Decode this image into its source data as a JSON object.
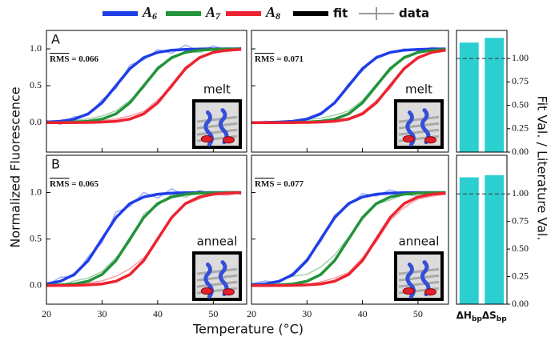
{
  "legend": [
    {
      "label": {
        "main": "A",
        "sub": "6"
      },
      "color": "#1f3ee6"
    },
    {
      "label": {
        "main": "A",
        "sub": "7"
      },
      "color": "#23933a"
    },
    {
      "label": {
        "main": "A",
        "sub": "8"
      },
      "color": "#ec2330"
    },
    {
      "label": "fit",
      "color": "#000000"
    },
    {
      "label": "data",
      "color": "#9a9a9a",
      "marker": "plus"
    }
  ],
  "ylabel": "Normalized Fluorescence",
  "xlabel": "Temperature (°C)",
  "bar_axis_label": "Fit Val. / Literature Val.",
  "chart_data": [
    {
      "type": "line",
      "label": "A",
      "rms": {
        "label": "RMS",
        "sep": " = ",
        "value": 0.066
      },
      "condition": "melt",
      "x": [
        20,
        22.5,
        25,
        27.5,
        30,
        32.5,
        35,
        37.5,
        40,
        42.5,
        45,
        47.5,
        50,
        52.5,
        55
      ],
      "xlim": [
        20,
        56
      ],
      "ylim": [
        -0.4,
        1.25
      ],
      "xticks": [
        20,
        30,
        40,
        50
      ],
      "yticks": [
        {
          "value": 0,
          "label": "0.0"
        },
        {
          "value": 0.5,
          "label": "0.5"
        },
        {
          "value": 1,
          "label": "1.0"
        }
      ],
      "show_xtick_labels": false,
      "show_ytick_labels": true,
      "series": [
        {
          "color": "#1f3ee6",
          "values": [
            0.007,
            0.018,
            0.047,
            0.119,
            0.269,
            0.5,
            0.731,
            0.881,
            0.953,
            0.982,
            0.993,
            0.998,
            0.999,
            1.0,
            1.0
          ],
          "data_values": [
            0.03,
            -0.02,
            0.08,
            0.1,
            0.31,
            0.46,
            0.78,
            0.85,
            0.99,
            0.94,
            1.05,
            0.97,
            1.04,
            0.98,
            1.02
          ]
        },
        {
          "color": "#23933a",
          "values": [
            0.001,
            0.002,
            0.007,
            0.018,
            0.047,
            0.119,
            0.269,
            0.5,
            0.731,
            0.881,
            0.953,
            0.982,
            0.993,
            0.998,
            0.999
          ],
          "data_values": [
            0.02,
            -0.01,
            0.03,
            0.05,
            0.09,
            0.16,
            0.3,
            0.47,
            0.76,
            0.86,
            0.97,
            0.95,
            1.01,
            0.99,
            0.98
          ]
        },
        {
          "color": "#ec2330",
          "values": [
            0.0,
            0.0,
            0.001,
            0.002,
            0.007,
            0.018,
            0.047,
            0.119,
            0.269,
            0.5,
            0.731,
            0.881,
            0.953,
            0.982,
            0.993
          ],
          "data_values": [
            0.01,
            -0.02,
            0.02,
            0.0,
            0.03,
            0.05,
            0.09,
            0.15,
            0.31,
            0.47,
            0.76,
            0.86,
            0.97,
            0.96,
            1.0
          ]
        }
      ]
    },
    {
      "type": "line",
      "rms": {
        "label": "RMS",
        "sep": " = ",
        "value": 0.071
      },
      "condition": "melt",
      "x": [
        20,
        22.5,
        25,
        27.5,
        30,
        32.5,
        35,
        37.5,
        40,
        42.5,
        45,
        47.5,
        50,
        52.5,
        55
      ],
      "xlim": [
        20,
        55.5
      ],
      "ylim": [
        -0.4,
        1.25
      ],
      "xticks": [
        20,
        30,
        40,
        50
      ],
      "yticks": [
        0,
        0.5,
        1
      ],
      "show_xtick_labels": false,
      "show_ytick_labels": false,
      "series": [
        {
          "color": "#1f3ee6",
          "values": [
            0.001,
            0.002,
            0.007,
            0.018,
            0.047,
            0.119,
            0.269,
            0.5,
            0.731,
            0.881,
            0.953,
            0.982,
            0.993,
            0.998,
            0.999
          ],
          "data_values": [
            0.0,
            0.02,
            -0.01,
            0.03,
            0.06,
            0.14,
            0.25,
            0.53,
            0.7,
            0.9,
            0.94,
            1.0,
            0.97,
            1.02,
            1.0
          ]
        },
        {
          "color": "#23933a",
          "values": [
            0.0,
            0.0,
            0.001,
            0.002,
            0.007,
            0.018,
            0.047,
            0.119,
            0.269,
            0.5,
            0.731,
            0.881,
            0.953,
            0.982,
            0.993
          ],
          "data_values": [
            0.01,
            0.0,
            0.02,
            0.01,
            0.04,
            0.06,
            0.1,
            0.16,
            0.3,
            0.52,
            0.7,
            0.9,
            0.94,
            0.99,
            0.98
          ]
        },
        {
          "color": "#ec2330",
          "values": [
            0.0,
            0.0,
            0.0,
            0.001,
            0.002,
            0.007,
            0.018,
            0.047,
            0.119,
            0.269,
            0.5,
            0.731,
            0.881,
            0.953,
            0.982
          ],
          "data_values": [
            0.0,
            0.01,
            -0.01,
            0.02,
            0.0,
            0.02,
            0.04,
            0.06,
            0.14,
            0.3,
            0.46,
            0.75,
            0.86,
            0.96,
            0.98
          ]
        }
      ]
    },
    {
      "type": "line",
      "label": "B",
      "rms": {
        "label": "RMS",
        "sep": " = ",
        "value": 0.065
      },
      "condition": "anneal",
      "x": [
        20,
        22.5,
        25,
        27.5,
        30,
        32.5,
        35,
        37.5,
        40,
        42.5,
        45,
        47.5,
        50,
        52.5,
        55
      ],
      "xlim": [
        20,
        56
      ],
      "ylim": [
        -0.2,
        1.4
      ],
      "xticks": [
        20,
        30,
        40,
        50
      ],
      "yticks": [
        {
          "value": 0,
          "label": "0.0"
        },
        {
          "value": 0.5,
          "label": "0.5"
        },
        {
          "value": 1,
          "label": "1.0"
        }
      ],
      "show_xtick_labels": true,
      "show_ytick_labels": true,
      "series": [
        {
          "color": "#1f3ee6",
          "values": [
            0.018,
            0.047,
            0.119,
            0.269,
            0.5,
            0.731,
            0.881,
            0.953,
            0.982,
            0.993,
            0.998,
            0.999,
            1.0,
            1.0,
            1.0
          ],
          "data_values": [
            0.0,
            0.09,
            0.1,
            0.31,
            0.46,
            0.79,
            0.85,
            1.0,
            0.94,
            1.04,
            0.97,
            1.02,
            0.99,
            1.01,
            0.98
          ]
        },
        {
          "color": "#23933a",
          "values": [
            0.002,
            0.007,
            0.018,
            0.047,
            0.119,
            0.269,
            0.5,
            0.731,
            0.881,
            0.953,
            0.982,
            0.993,
            0.998,
            0.999,
            1.0
          ],
          "data_values": [
            0.02,
            0.0,
            0.05,
            0.08,
            0.15,
            0.3,
            0.47,
            0.77,
            0.86,
            0.98,
            0.95,
            1.02,
            0.98,
            1.0,
            0.99
          ]
        },
        {
          "color": "#ec2330",
          "values": [
            0.0,
            0.001,
            0.002,
            0.007,
            0.018,
            0.047,
            0.119,
            0.269,
            0.5,
            0.731,
            0.881,
            0.953,
            0.982,
            0.993,
            0.998
          ],
          "data_values": [
            0.01,
            0.0,
            0.02,
            0.03,
            0.05,
            0.1,
            0.18,
            0.3,
            0.48,
            0.74,
            0.87,
            0.93,
            0.99,
            0.97,
            1.0
          ]
        }
      ]
    },
    {
      "type": "line",
      "rms": {
        "label": "RMS",
        "sep": " = ",
        "value": 0.077
      },
      "condition": "anneal",
      "x": [
        20,
        22.5,
        25,
        27.5,
        30,
        32.5,
        35,
        37.5,
        40,
        42.5,
        45,
        47.5,
        50,
        52.5,
        55
      ],
      "xlim": [
        20,
        55.5
      ],
      "ylim": [
        -0.2,
        1.4
      ],
      "xticks": [
        20,
        30,
        40,
        50
      ],
      "yticks": [
        0,
        0.5,
        1
      ],
      "show_xtick_labels": true,
      "show_ytick_labels": false,
      "series": [
        {
          "color": "#1f3ee6",
          "values": [
            0.007,
            0.018,
            0.047,
            0.119,
            0.269,
            0.5,
            0.731,
            0.881,
            0.953,
            0.982,
            0.993,
            0.998,
            0.999,
            1.0,
            1.0
          ],
          "data_values": [
            0.02,
            0.05,
            0.03,
            0.14,
            0.29,
            0.47,
            0.76,
            0.86,
            0.99,
            0.96,
            1.03,
            0.98,
            1.01,
            0.99,
            1.0
          ]
        },
        {
          "color": "#23933a",
          "values": [
            0.001,
            0.002,
            0.007,
            0.018,
            0.047,
            0.119,
            0.269,
            0.5,
            0.731,
            0.881,
            0.953,
            0.982,
            0.993,
            0.998,
            0.999
          ],
          "data_values": [
            0.0,
            0.03,
            0.05,
            0.1,
            0.12,
            0.2,
            0.33,
            0.52,
            0.71,
            0.87,
            0.92,
            0.98,
            0.96,
            1.0,
            0.98
          ]
        },
        {
          "color": "#ec2330",
          "values": [
            0.0,
            0.0,
            0.001,
            0.002,
            0.007,
            0.018,
            0.047,
            0.119,
            0.269,
            0.5,
            0.731,
            0.881,
            0.953,
            0.982,
            0.993
          ],
          "data_values": [
            0.0,
            0.01,
            0.0,
            0.02,
            0.01,
            0.04,
            0.08,
            0.14,
            0.3,
            0.47,
            0.7,
            0.84,
            0.93,
            0.96,
            0.98
          ]
        }
      ]
    },
    {
      "type": "bar",
      "categories": [
        {
          "main": "ΔH",
          "sub": "bp"
        },
        {
          "main": "ΔS",
          "sub": "bp"
        }
      ],
      "values": [
        1.17,
        1.22
      ],
      "color": "#2ccfd0",
      "ylim": [
        0,
        1.3
      ],
      "reference": 1.0,
      "show_xtick_labels": false,
      "yticks": [
        {
          "value": 0,
          "label": "0.00"
        },
        {
          "value": 0.25,
          "label": "0.25"
        },
        {
          "value": 0.5,
          "label": "0.50"
        },
        {
          "value": 0.75,
          "label": "0.75"
        },
        {
          "value": 1,
          "label": "1.00"
        }
      ]
    },
    {
      "type": "bar",
      "categories": [
        {
          "main": "ΔH",
          "sub": "bp"
        },
        {
          "main": "ΔS",
          "sub": "bp"
        }
      ],
      "values": [
        1.15,
        1.17
      ],
      "color": "#2ccfd0",
      "ylim": [
        0,
        1.35
      ],
      "reference": 1.0,
      "show_xtick_labels": true,
      "yticks": [
        {
          "value": 0,
          "label": "0.00"
        },
        {
          "value": 0.25,
          "label": "0.25"
        },
        {
          "value": 0.5,
          "label": "0.50"
        },
        {
          "value": 0.75,
          "label": "0.75"
        },
        {
          "value": 1,
          "label": "1.00"
        }
      ]
    }
  ]
}
